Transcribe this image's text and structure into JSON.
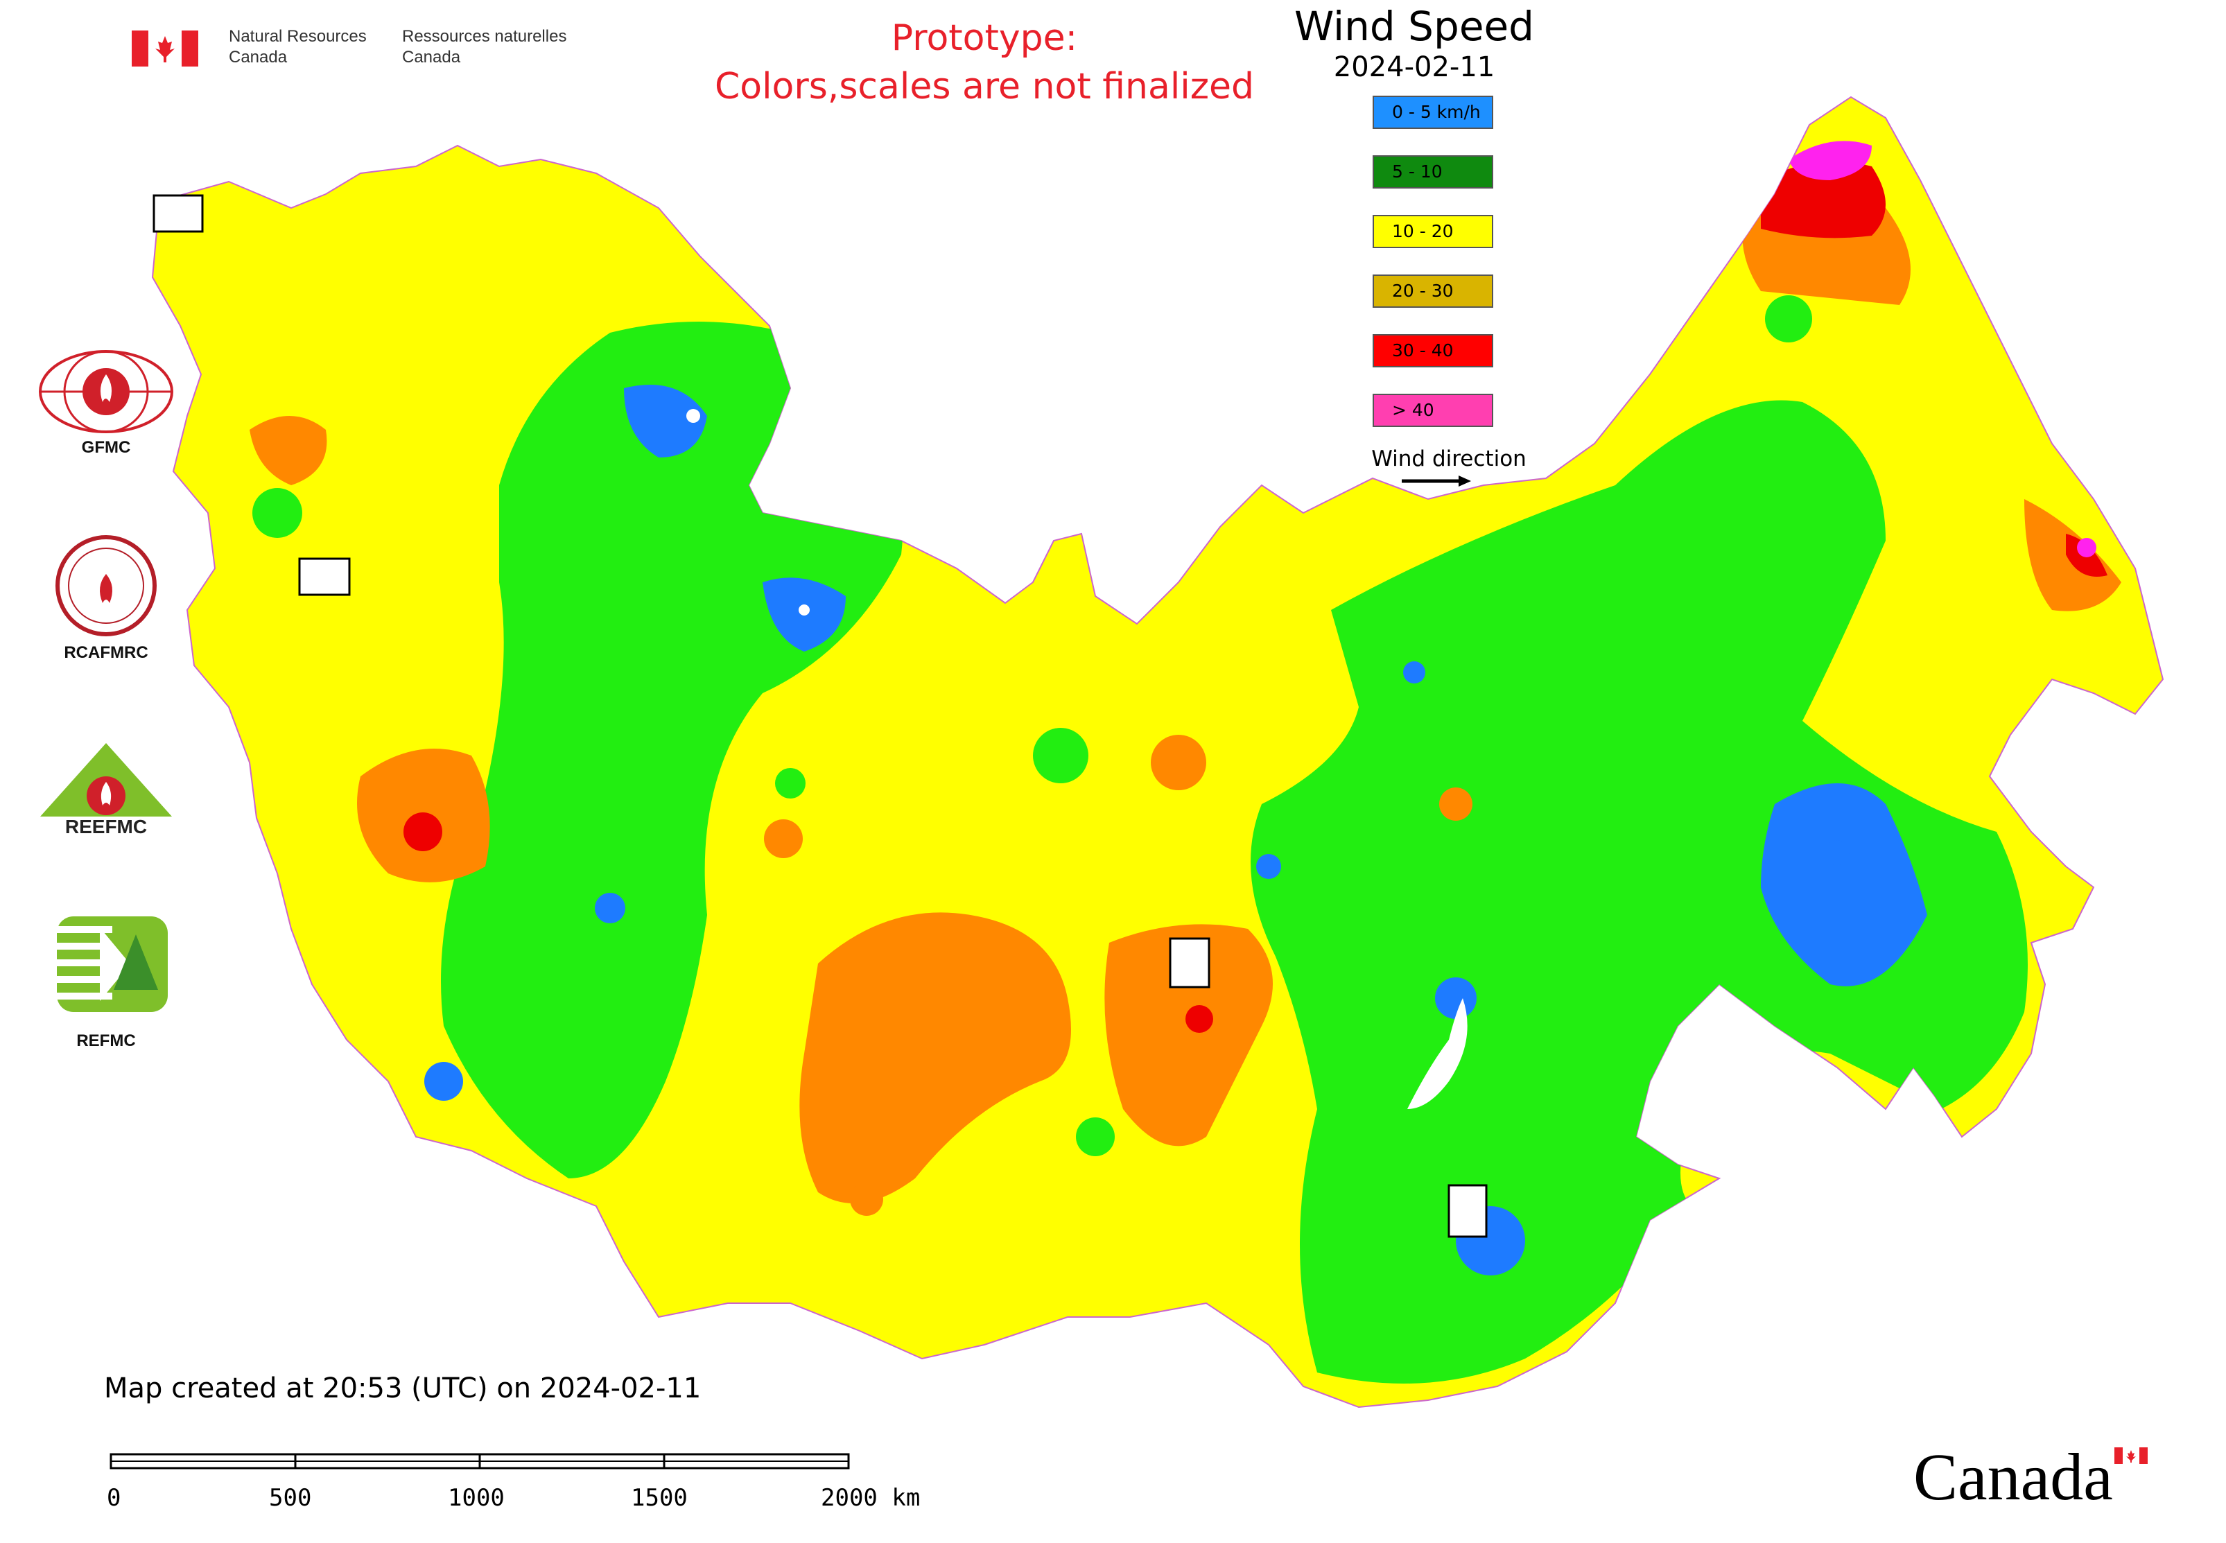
{
  "header": {
    "org_en": "Natural Resources\nCanada",
    "org_fr": "Ressources naturelles\nCanada",
    "notice_line1": "Prototype:",
    "notice_line2": "Colors,scales are not finalized"
  },
  "legend": {
    "title": "Wind Speed",
    "date": "2024-02-11",
    "items": [
      {
        "label": "0 - 5 km/h",
        "color": "#1e90ff"
      },
      {
        "label": "5 - 10",
        "color": "#0f8a0f"
      },
      {
        "label": "10 - 20",
        "color": "#ffff00"
      },
      {
        "label": "20 - 30",
        "color": "#d9b400"
      },
      {
        "label": "30 - 40",
        "color": "#ff0000"
      },
      {
        "label": "> 40",
        "color": "#ff3fb0"
      }
    ],
    "wind_direction_label": "Wind direction"
  },
  "map": {
    "zone_colors": {
      "calm": "#1e7bff",
      "light": "#22ee11",
      "moderate": "#ffff00",
      "strong": "#ff8800",
      "very_strong": "#ee0000",
      "extreme": "#ff22ee"
    },
    "center_logos": [
      "REEFMC",
      "REFMC",
      "GFMC",
      "RCAFMRC"
    ]
  },
  "side_logos": [
    {
      "label": "GFMC",
      "icon": "gfmc-logo"
    },
    {
      "label": "RCAFMRC",
      "icon": "rcafmrc-logo"
    },
    {
      "label": "",
      "icon": "reefmc-logo"
    },
    {
      "label": "REFMC",
      "icon": "refmc-logo"
    }
  ],
  "reefmc_logo_text": "REEFMC",
  "footer": {
    "created": "Map created at 20:53 (UTC) on 2024-02-11",
    "scale_labels": [
      "0",
      "500",
      "1000",
      "1500",
      "2000 km"
    ],
    "wordmark": "Canada"
  }
}
